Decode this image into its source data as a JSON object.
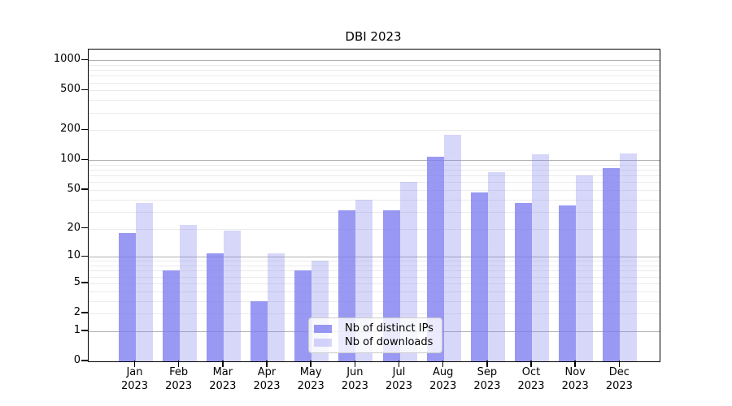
{
  "title": "DBI 2023",
  "chart_data": {
    "type": "bar",
    "title": "DBI 2023",
    "xlabel": "",
    "ylabel": "",
    "yscale": "symlog (position proportional to ln(1+v))",
    "grid": "horizontal major+minor gridlines on",
    "legend_position": "inside, lower center",
    "y_ticks": [
      0,
      1,
      2,
      5,
      10,
      20,
      50,
      100,
      200,
      500,
      1000
    ],
    "y_minor_gridlines": [
      2,
      3,
      4,
      5,
      6,
      7,
      8,
      9,
      20,
      30,
      40,
      50,
      60,
      70,
      80,
      90,
      200,
      300,
      400,
      500,
      600,
      700,
      800,
      900
    ],
    "y_major_gridlines": [
      1,
      10,
      100,
      1000
    ],
    "ylim": [
      0,
      1280
    ],
    "categories": [
      "Jan 2023",
      "Feb 2023",
      "Mar 2023",
      "Apr 2023",
      "May 2023",
      "Jun 2023",
      "Jul 2023",
      "Aug 2023",
      "Sep 2023",
      "Oct 2023",
      "Nov 2023",
      "Dec 2023"
    ],
    "series": [
      {
        "name": "Nb of distinct IPs",
        "color": "rgba(124,124,240,0.78)",
        "values": [
          18,
          7,
          11,
          3,
          7,
          31,
          31,
          108,
          47,
          37,
          35,
          83
        ]
      },
      {
        "name": "Nb of downloads",
        "color": "rgba(124,124,240,0.30)",
        "values": [
          37,
          22,
          19,
          11,
          9,
          40,
          60,
          180,
          76,
          115,
          70,
          118
        ]
      }
    ]
  },
  "colors": {
    "bar_base": "#7c7cf0",
    "axis": "#000000",
    "grid_major": "#b0b0b0",
    "grid_minor": "#ebebeb",
    "legend_border": "#cccccc",
    "background": "#ffffff"
  }
}
